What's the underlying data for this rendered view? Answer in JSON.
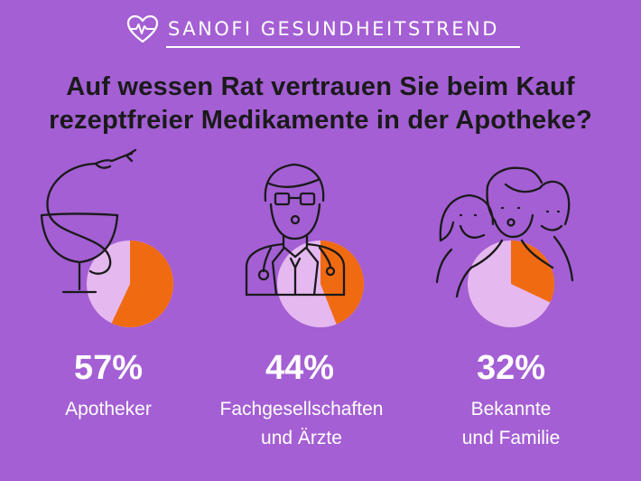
{
  "header": {
    "brand": "SANOFI GESUNDHEITSTREND",
    "title_line1": "Auf wessen Rat vertrauen Sie beim Kauf",
    "title_line2": "rezeptfreier Medikamente in der Apotheke?"
  },
  "colors": {
    "background": "#a45fd4",
    "pie_share": "#f06a12",
    "pie_rest": "#e5b8f0",
    "icon_stroke": "#1a1a1a",
    "text_light": "#ffffff"
  },
  "chart_data": {
    "type": "pie",
    "unit": "%",
    "items": [
      {
        "label_line1": "Apotheker",
        "label_line2": "",
        "value": 57,
        "value_label": "57%",
        "icon": "bowl-of-hygieia-icon"
      },
      {
        "label_line1": "Fachgesellschaften",
        "label_line2": "und Ärzte",
        "value": 44,
        "value_label": "44%",
        "icon": "doctor-icon"
      },
      {
        "label_line1": "Bekannte",
        "label_line2": "und Familie",
        "value": 32,
        "value_label": "32%",
        "icon": "family-people-icon"
      }
    ]
  }
}
